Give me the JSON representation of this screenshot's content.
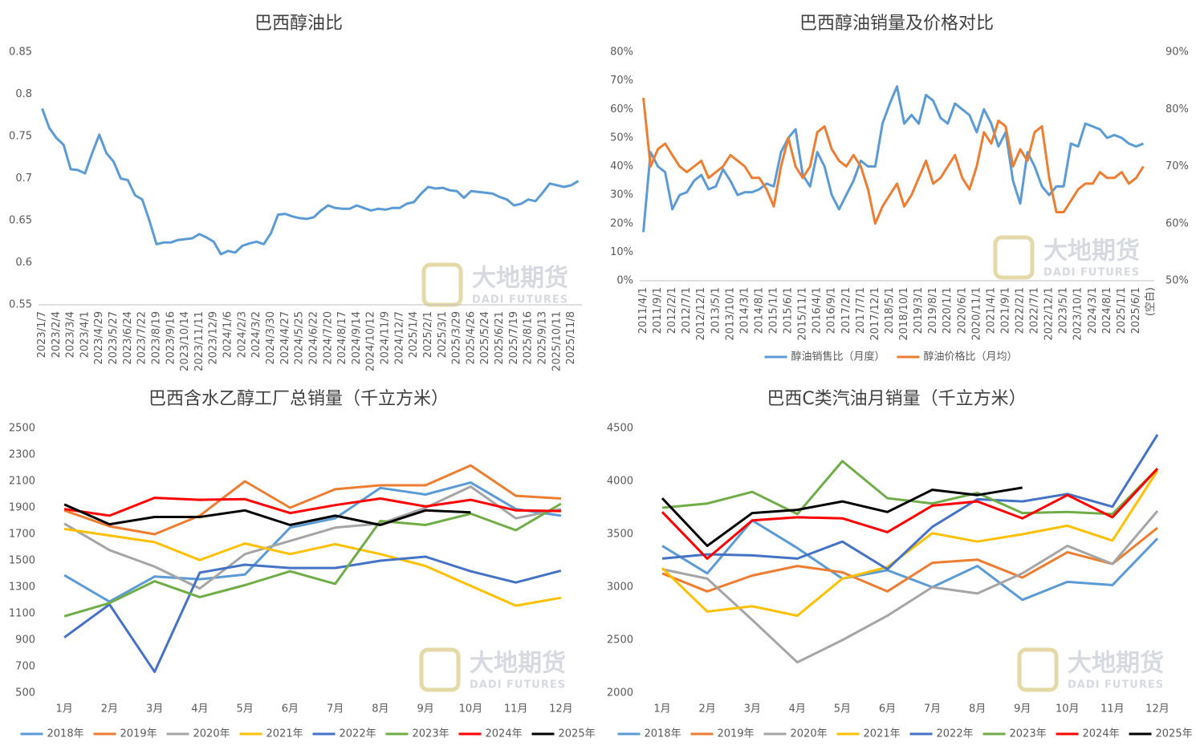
{
  "chart_data": [
    {
      "type": "line",
      "title": "巴西醇油比",
      "categories": [
        "2023/1/7",
        null,
        "2023/2/4",
        null,
        "2023/3/4",
        null,
        "2023/4/1",
        null,
        "2023/4/29",
        null,
        "2023/5/27",
        null,
        "2023/6/24",
        null,
        "2023/7/22",
        null,
        "2023/8/19",
        null,
        "2023/9/16",
        null,
        "2023/10/14",
        null,
        "2023/11/11",
        null,
        "2023/12/9",
        null,
        "2024/1/6",
        null,
        "2024/2/3",
        null,
        "2024/3/2",
        null,
        "2024/3/30",
        null,
        "2024/4/27",
        null,
        "2024/5/25",
        null,
        "2024/6/22",
        null,
        "2024/7/20",
        null,
        "2024/8/17",
        null,
        "2024/9/14",
        null,
        "2024/10/12",
        null,
        "2024/11/9",
        null,
        "2024/12/7",
        null,
        "2025/1/4",
        null,
        "2025/2/1",
        null,
        "2025/3/1",
        null,
        "2025/3/29",
        null,
        "2025/4/26",
        null,
        "2025/5/24",
        null,
        "2025/6/21",
        null,
        "2025/7/19",
        null,
        "2025/8/16",
        null,
        "2025/9/13",
        null,
        "2025/10/11",
        null,
        "2025/11/8",
        null
      ],
      "series": [
        {
          "color": "#5b9bd5",
          "values": [
            0.783,
            0.76,
            0.748,
            0.74,
            0.711,
            0.71,
            0.706,
            0.73,
            0.752,
            0.73,
            0.72,
            0.7,
            0.698,
            0.68,
            0.675,
            0.65,
            0.622,
            0.624,
            0.624,
            0.627,
            0.628,
            0.629,
            0.634,
            0.63,
            0.625,
            0.61,
            0.614,
            0.612,
            0.62,
            0.623,
            0.625,
            0.622,
            0.635,
            0.657,
            0.658,
            0.655,
            0.653,
            0.652,
            0.654,
            0.662,
            0.668,
            0.665,
            0.664,
            0.664,
            0.668,
            0.665,
            0.662,
            0.664,
            0.663,
            0.665,
            0.665,
            0.67,
            0.672,
            0.682,
            0.69,
            0.688,
            0.689,
            0.686,
            0.685,
            0.677,
            0.685,
            0.684,
            0.683,
            0.682,
            0.678,
            0.675,
            0.668,
            0.67,
            0.675,
            0.673,
            0.683,
            0.694,
            0.692,
            0.69,
            0.692,
            0.697
          ]
        }
      ],
      "ylim": [
        0.55,
        0.85
      ],
      "yticks": [
        0.55,
        0.6,
        0.65,
        0.7,
        0.75,
        0.8,
        0.85
      ],
      "grid": false
    },
    {
      "type": "line",
      "title": "巴西醇油销量及价格对比",
      "categories": [
        "2011/4/1",
        null,
        "2011/9/1",
        null,
        "2012/2/1",
        null,
        "2012/7/1",
        null,
        "2012/12/1",
        null,
        "2013/5/1",
        null,
        "2013/10/1",
        null,
        "2014/3/1",
        null,
        "2014/8/1",
        null,
        "2015/1/1",
        null,
        "2015/6/1",
        null,
        "2015/11/1",
        null,
        "2016/4/1",
        null,
        "2016/9/1",
        null,
        "2017/2/1",
        null,
        "2017/7/1",
        null,
        "2017/12/1",
        null,
        "2018/5/1",
        null,
        "2018/10/1",
        null,
        "2019/3/1",
        null,
        "2019/8/1",
        null,
        "2020/1/1",
        null,
        "2020/6/1",
        null,
        "2020/11/1",
        null,
        "2021/4/1",
        null,
        "2021/9/1",
        null,
        "2022/2/1",
        null,
        "2022/7/1",
        null,
        "2022/12/1",
        null,
        "2023/5/1",
        null,
        "2023/10/1",
        null,
        "2024/3/1",
        null,
        "2024/8/1",
        null,
        "2025/1/1",
        null,
        "2025/6/1",
        null,
        "(空白)"
      ],
      "series": [
        {
          "name": "醇油销售比（月度）",
          "color": "#5b9bd5",
          "values": [
            17,
            45,
            40,
            38,
            25,
            30,
            31,
            35,
            37,
            32,
            33,
            39,
            35,
            30,
            31,
            31,
            32,
            34,
            33,
            45,
            50,
            53,
            37,
            33,
            45,
            40,
            30,
            25,
            30,
            35,
            42,
            40,
            40,
            55,
            62,
            68,
            55,
            58,
            55,
            65,
            63,
            57,
            55,
            62,
            60,
            58,
            52,
            60,
            55,
            47,
            52,
            35,
            27,
            45,
            40,
            33,
            30,
            33,
            33,
            48,
            47,
            55,
            54,
            53,
            50,
            51,
            50,
            48,
            47,
            48,
            null
          ]
        },
        {
          "name": "醇油价格比（月均）",
          "color": "#ed7d31",
          "axis": "y2",
          "values": [
            82,
            70,
            73,
            74,
            72,
            70,
            69,
            70,
            71,
            68,
            69,
            70,
            72,
            71,
            70,
            68,
            68,
            66,
            63,
            70,
            75,
            70,
            68,
            70,
            76,
            77,
            73,
            71,
            70,
            72,
            70,
            66,
            60,
            63,
            65,
            67,
            63,
            65,
            68,
            71,
            67,
            68,
            70,
            72,
            68,
            66,
            70,
            76,
            74,
            78,
            77,
            70,
            73,
            71,
            76,
            77,
            68,
            62,
            62,
            64,
            66,
            67,
            67,
            69,
            68,
            68,
            69,
            67,
            68,
            70,
            null
          ]
        }
      ],
      "ylim": [
        0,
        80
      ],
      "yticks": [
        {
          "value": 0,
          "label": "0%"
        },
        {
          "value": 10,
          "label": "10%"
        },
        {
          "value": 20,
          "label": "20%"
        },
        {
          "value": 30,
          "label": "30%"
        },
        {
          "value": 40,
          "label": "40%"
        },
        {
          "value": 50,
          "label": "50%"
        },
        {
          "value": 60,
          "label": "60%"
        },
        {
          "value": 70,
          "label": "70%"
        },
        {
          "value": 80,
          "label": "80%"
        }
      ],
      "y2lim": [
        50,
        90
      ],
      "y2ticks": [
        {
          "value": 50,
          "label": "50%"
        },
        {
          "value": 60,
          "label": "60%"
        },
        {
          "value": 70,
          "label": "70%"
        },
        {
          "value": 80,
          "label": "80%"
        },
        {
          "value": 90,
          "label": "90%"
        }
      ],
      "grid": false,
      "legend": "bottom"
    },
    {
      "type": "line",
      "title": "巴西含水乙醇工厂总销量（千立方米）",
      "categories": [
        "1月",
        "2月",
        "3月",
        "4月",
        "5月",
        "6月",
        "7月",
        "8月",
        "9月",
        "10月",
        "11月",
        "12月"
      ],
      "series": [
        {
          "name": "2018年",
          "color": "#5b9bd5",
          "values": [
            1390,
            1190,
            1380,
            1360,
            1395,
            1750,
            1820,
            2050,
            2000,
            2090,
            1890,
            1840
          ]
        },
        {
          "name": "2019年",
          "color": "#ed7d31",
          "values": [
            1880,
            1760,
            1700,
            1840,
            2100,
            1900,
            2040,
            2070,
            2070,
            2220,
            1990,
            1970
          ]
        },
        {
          "name": "2020年",
          "color": "#a5a5a5",
          "values": [
            1780,
            1580,
            1455,
            1290,
            1550,
            1650,
            1750,
            1780,
            1900,
            2060,
            1820,
            1890
          ]
        },
        {
          "name": "2021年",
          "color": "#ffc000",
          "values": [
            1740,
            1690,
            1640,
            1505,
            1630,
            1550,
            1625,
            1550,
            1460,
            1310,
            1160,
            1220
          ]
        },
        {
          "name": "2022年",
          "color": "#4472c4",
          "values": [
            920,
            1170,
            660,
            1410,
            1470,
            1445,
            1445,
            1500,
            1530,
            1420,
            1335,
            1425
          ]
        },
        {
          "name": "2023年",
          "color": "#70ad47",
          "values": [
            1080,
            1180,
            1345,
            1225,
            1315,
            1420,
            1325,
            1800,
            1770,
            1855,
            1730,
            1930
          ]
        },
        {
          "name": "2024年",
          "color": "#ff0000",
          "values": [
            1890,
            1840,
            1975,
            1960,
            1965,
            1860,
            1920,
            1970,
            1910,
            1960,
            1880,
            1875
          ]
        },
        {
          "name": "2025年",
          "color": "#000000",
          "values": [
            1925,
            1775,
            1830,
            1830,
            1880,
            1770,
            1840,
            1770,
            1880,
            1865,
            null,
            null
          ]
        }
      ],
      "ylim": [
        500,
        2500
      ],
      "yticks": [
        500,
        700,
        900,
        1100,
        1300,
        1500,
        1700,
        1900,
        2100,
        2300,
        2500
      ],
      "grid": false,
      "legend": "bottom"
    },
    {
      "type": "line",
      "title": "巴西C类汽油月销量（千立方米）",
      "categories": [
        "1月",
        "2月",
        "3月",
        "4月",
        "5月",
        "6月",
        "7月",
        "8月",
        "9月",
        "10月",
        "11月",
        "12月"
      ],
      "series": [
        {
          "name": "2018年",
          "color": "#5b9bd5",
          "values": [
            3390,
            3130,
            3630,
            3370,
            3080,
            3160,
            3000,
            3200,
            2880,
            3050,
            3020,
            3460
          ]
        },
        {
          "name": "2019年",
          "color": "#ed7d31",
          "values": [
            3130,
            2960,
            3110,
            3200,
            3140,
            2960,
            3230,
            3260,
            3090,
            3330,
            3220,
            3560
          ]
        },
        {
          "name": "2020年",
          "color": "#a5a5a5",
          "values": [
            3170,
            3080,
            2690,
            2290,
            2500,
            2730,
            3000,
            2940,
            3130,
            3390,
            3220,
            3720
          ]
        },
        {
          "name": "2021年",
          "color": "#ffc000",
          "values": [
            3180,
            2770,
            2820,
            2730,
            3080,
            3190,
            3510,
            3430,
            3500,
            3580,
            3440,
            4100
          ]
        },
        {
          "name": "2022年",
          "color": "#4472c4",
          "values": [
            3270,
            3310,
            3300,
            3270,
            3430,
            3170,
            3570,
            3830,
            3810,
            3880,
            3760,
            4440
          ]
        },
        {
          "name": "2023年",
          "color": "#70ad47",
          "values": [
            3750,
            3790,
            3900,
            3690,
            4190,
            3840,
            3790,
            3890,
            3700,
            3710,
            3690,
            4120
          ]
        },
        {
          "name": "2024年",
          "color": "#ff0000",
          "values": [
            3710,
            3270,
            3630,
            3660,
            3650,
            3520,
            3770,
            3810,
            3650,
            3870,
            3660,
            4120
          ]
        },
        {
          "name": "2025年",
          "color": "#000000",
          "values": [
            3840,
            3390,
            3700,
            3730,
            3810,
            3710,
            3920,
            3870,
            3940,
            null,
            null,
            null
          ]
        }
      ],
      "ylim": [
        2000,
        4500
      ],
      "yticks": [
        2000,
        2500,
        3000,
        3500,
        4000,
        4500
      ],
      "grid": false,
      "legend": "bottom"
    }
  ],
  "watermark": {
    "cn": "大地期货",
    "en": "DADI FUTURES"
  }
}
